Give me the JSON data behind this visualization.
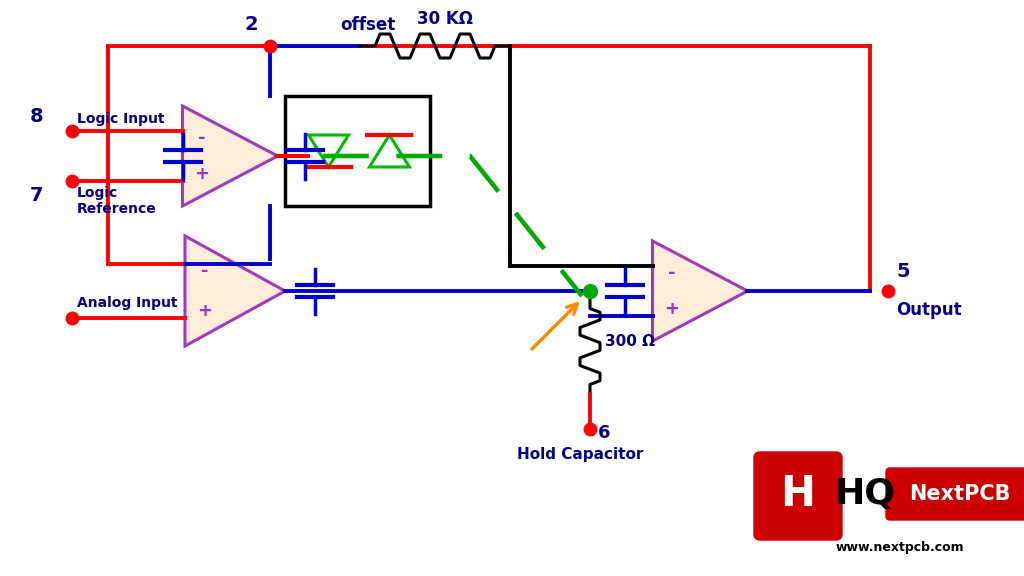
{
  "bg_color": "#ffffff",
  "colors": {
    "red": "#ff0000",
    "blue": "#0000cd",
    "dark_blue": "#00008B",
    "purple": "#9933cc",
    "orange": "#ff8c00",
    "green": "#00aa00",
    "black": "#000000",
    "dark_red": "#cc0000",
    "salmon": "#ff7f50"
  },
  "labels": {
    "analog_input": "Analog Input",
    "logic_input": "Logic Input",
    "logic_ref": "Logic\nReference",
    "output": "Output",
    "offset": "offset",
    "resistor1": "30 KΩ",
    "resistor2": "300 Ω",
    "hold_cap": "Hold Capacitor",
    "pin2": "2",
    "pin5": "5",
    "pin6": "6",
    "pin7": "7",
    "pin8": "8",
    "www": "www.nextpcb.com"
  }
}
